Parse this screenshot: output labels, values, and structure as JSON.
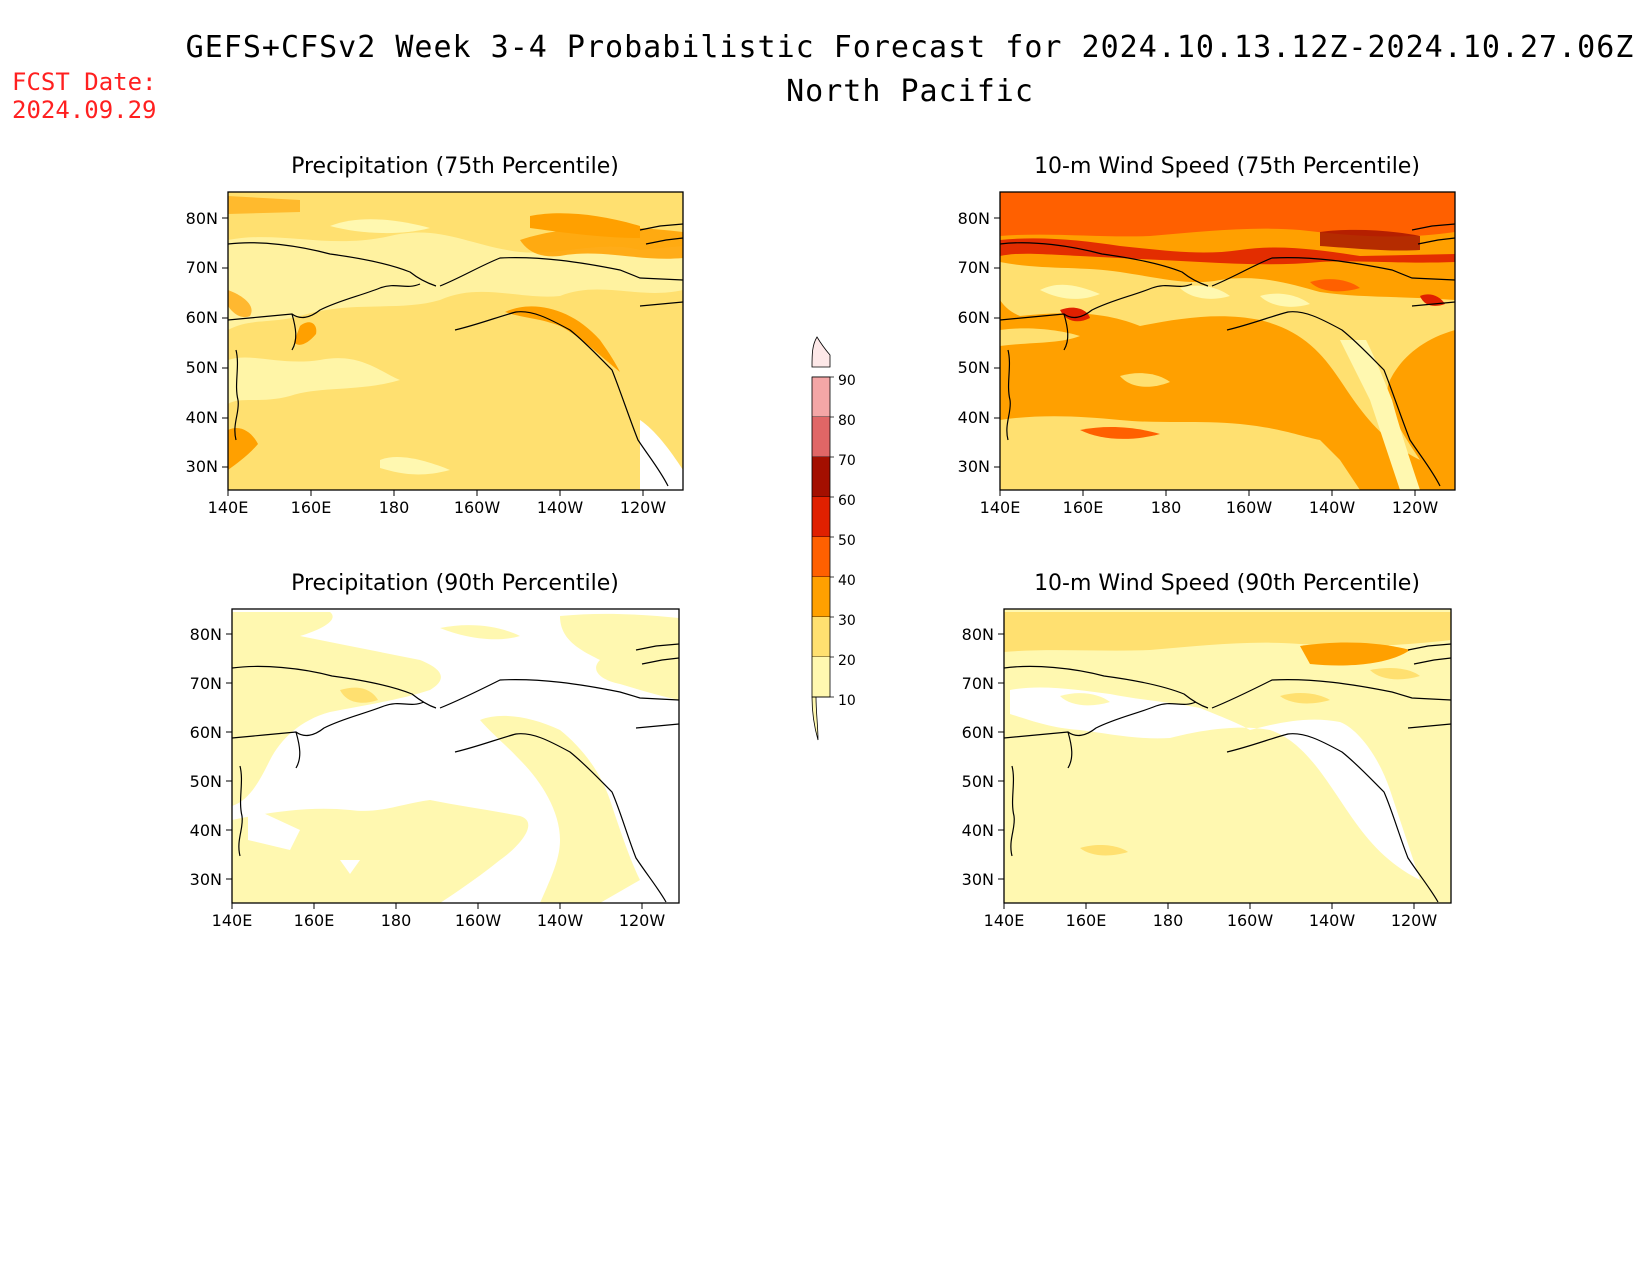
{
  "header": {
    "title": "GEFS+CFSv2 Week 3-4 Probabilistic Forecast for 2024.10.13.12Z-2024.10.27.06Z",
    "region": "North Pacific",
    "fcst_label": "FCST Date:",
    "fcst_date": "2024.09.29"
  },
  "lat_ticks": [
    "80N",
    "70N",
    "60N",
    "50N",
    "40N",
    "30N"
  ],
  "lon_ticks": [
    "140E",
    "160E",
    "180",
    "160W",
    "140W",
    "120W"
  ],
  "panels": [
    {
      "title": "Precipitation (75th Percentile)",
      "dominant_level": "20-30"
    },
    {
      "title": "10-m Wind Speed (75th Percentile)",
      "dominant_level": "30-40"
    },
    {
      "title": "Precipitation (90th Percentile)",
      "dominant_level": "10-20"
    },
    {
      "title": "10-m Wind Speed (90th Percentile)",
      "dominant_level": "10-20"
    }
  ],
  "colorbar": {
    "labels": [
      "90",
      "80",
      "70",
      "60",
      "50",
      "40",
      "30",
      "20",
      "10"
    ],
    "colors": [
      "#fbdada",
      "#f4a6a6",
      "#e06666",
      "#a30f00",
      "#e02000",
      "#ff6000",
      "#ffa000",
      "#ffe070",
      "#fff8b0"
    ]
  },
  "fill_colors": {
    "level_10_20": "#fff8b0",
    "level_20_30": "#ffe070",
    "level_30_40": "#ffa000",
    "level_40_50": "#ff6000",
    "level_50_60": "#e02000",
    "below": "#ffffff"
  }
}
